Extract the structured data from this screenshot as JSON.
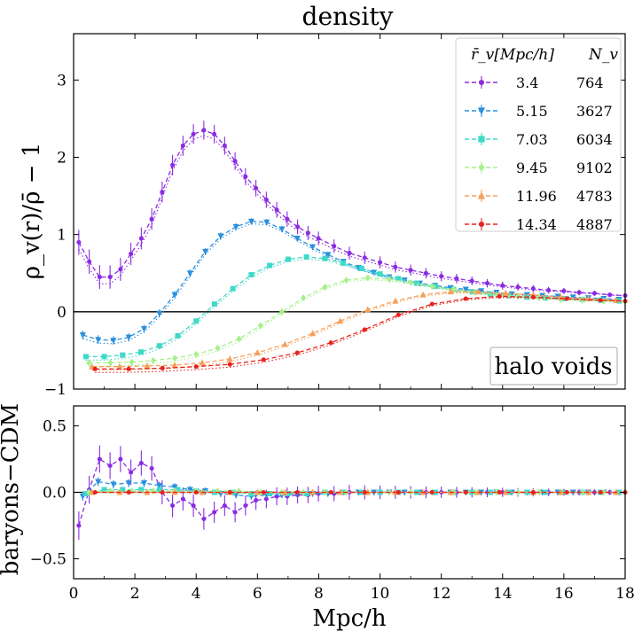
{
  "chart_data": [
    {
      "type": "line",
      "title": "density",
      "ylabel": "ρ_v(r)/ρ̄ − 1",
      "xlabel": "",
      "xlim": [
        0,
        18
      ],
      "ylim": [
        -1,
        3.6
      ],
      "xticks": [
        "0",
        "2",
        "4",
        "6",
        "8",
        "10",
        "12",
        "14",
        "16",
        "18"
      ],
      "yticks": [
        "−1",
        "0",
        "1",
        "2",
        "3"
      ],
      "ytick_values": [
        -1,
        0,
        1,
        2,
        3
      ],
      "annotation": "halo voids",
      "legend": {
        "location": "upper-right",
        "header_radius": "r̄_v[Mpc/h]",
        "header_count": "N_v"
      },
      "series": [
        {
          "name": "3.4",
          "count": "764",
          "color": "#8b2be2",
          "marker": "circle",
          "x": [
            0.17,
            0.51,
            0.85,
            1.19,
            1.53,
            1.87,
            2.21,
            2.55,
            2.89,
            3.23,
            3.57,
            3.91,
            4.25,
            4.59,
            4.93,
            5.27,
            5.61,
            5.95,
            6.29,
            6.63,
            6.97,
            7.31,
            7.65,
            7.99,
            8.5,
            9.0,
            9.5,
            10.0,
            10.5,
            11.0,
            11.5,
            12.0,
            12.5,
            13.0,
            13.5,
            14.0,
            14.5,
            15.0,
            15.5,
            16.0,
            16.5,
            17.0,
            17.5,
            18.0
          ],
          "values": [
            0.9,
            0.65,
            0.45,
            0.45,
            0.55,
            0.75,
            0.95,
            1.2,
            1.55,
            1.9,
            2.15,
            2.3,
            2.35,
            2.3,
            2.15,
            1.95,
            1.75,
            1.6,
            1.45,
            1.32,
            1.2,
            1.1,
            1.02,
            0.95,
            0.85,
            0.76,
            0.7,
            0.64,
            0.58,
            0.54,
            0.5,
            0.46,
            0.43,
            0.4,
            0.37,
            0.34,
            0.32,
            0.3,
            0.28,
            0.27,
            0.25,
            0.24,
            0.22,
            0.21
          ]
        },
        {
          "name": "5.15",
          "count": "3627",
          "color": "#2a8fdd",
          "marker": "triangle-down",
          "x": [
            0.3,
            0.8,
            1.3,
            1.8,
            2.3,
            2.8,
            3.3,
            3.8,
            4.3,
            4.8,
            5.3,
            5.8,
            6.3,
            6.8,
            7.3,
            7.8,
            8.3,
            8.8,
            9.3,
            9.8,
            10.3,
            10.8,
            11.3,
            11.8,
            12.3,
            12.8,
            13.3,
            13.8,
            14.3,
            14.8,
            15.3,
            15.8,
            16.3,
            16.8,
            17.3,
            17.8
          ],
          "values": [
            -0.3,
            -0.36,
            -0.37,
            -0.33,
            -0.22,
            -0.02,
            0.22,
            0.5,
            0.78,
            0.98,
            1.1,
            1.17,
            1.16,
            1.07,
            0.95,
            0.84,
            0.74,
            0.65,
            0.57,
            0.51,
            0.45,
            0.41,
            0.37,
            0.34,
            0.31,
            0.29,
            0.27,
            0.25,
            0.23,
            0.22,
            0.21,
            0.2,
            0.19,
            0.18,
            0.17,
            0.16
          ]
        },
        {
          "name": "7.03",
          "count": "6034",
          "color": "#3fd9c8",
          "marker": "square",
          "x": [
            0.4,
            1.0,
            1.6,
            2.2,
            2.8,
            3.4,
            4.0,
            4.6,
            5.2,
            5.8,
            6.4,
            7.0,
            7.6,
            8.2,
            8.8,
            9.4,
            10.0,
            10.6,
            11.2,
            11.8,
            12.4,
            13.0,
            13.6,
            14.2,
            14.8,
            15.4,
            16.0,
            16.6,
            17.2,
            17.8
          ],
          "values": [
            -0.58,
            -0.58,
            -0.56,
            -0.52,
            -0.44,
            -0.31,
            -0.12,
            0.1,
            0.3,
            0.48,
            0.6,
            0.68,
            0.71,
            0.69,
            0.63,
            0.56,
            0.49,
            0.43,
            0.37,
            0.33,
            0.29,
            0.26,
            0.23,
            0.21,
            0.19,
            0.18,
            0.17,
            0.16,
            0.15,
            0.14
          ]
        },
        {
          "name": "9.45",
          "count": "9102",
          "color": "#a7f08c",
          "marker": "diamond",
          "x": [
            0.5,
            1.2,
            1.9,
            2.6,
            3.3,
            4.0,
            4.7,
            5.4,
            6.1,
            6.8,
            7.5,
            8.2,
            8.9,
            9.6,
            10.3,
            11.0,
            11.7,
            12.4,
            13.1,
            13.8,
            14.5,
            15.2,
            15.9,
            16.6,
            17.3,
            18.0
          ],
          "values": [
            -0.66,
            -0.66,
            -0.65,
            -0.63,
            -0.6,
            -0.55,
            -0.47,
            -0.35,
            -0.18,
            0.0,
            0.18,
            0.32,
            0.41,
            0.44,
            0.42,
            0.38,
            0.33,
            0.29,
            0.25,
            0.22,
            0.2,
            0.18,
            0.16,
            0.15,
            0.14,
            0.13
          ]
        },
        {
          "name": "11.96",
          "count": "4783",
          "color": "#f5a05a",
          "marker": "triangle-up",
          "x": [
            0.6,
            1.5,
            2.4,
            3.3,
            4.2,
            5.1,
            6.0,
            6.9,
            7.8,
            8.7,
            9.6,
            10.5,
            11.4,
            12.3,
            13.2,
            14.1,
            15.0,
            15.9,
            16.8,
            17.7
          ],
          "values": [
            -0.71,
            -0.71,
            -0.7,
            -0.69,
            -0.66,
            -0.61,
            -0.53,
            -0.42,
            -0.28,
            -0.12,
            0.03,
            0.14,
            0.22,
            0.26,
            0.26,
            0.24,
            0.22,
            0.19,
            0.17,
            0.15
          ]
        },
        {
          "name": "14.34",
          "count": "4887",
          "color": "#e8231c",
          "marker": "circle",
          "x": [
            0.7,
            1.8,
            2.9,
            4.0,
            5.1,
            6.2,
            7.3,
            8.4,
            9.5,
            10.6,
            11.7,
            12.8,
            13.9,
            15.0,
            16.1,
            17.2,
            18.0
          ],
          "values": [
            -0.74,
            -0.74,
            -0.73,
            -0.71,
            -0.68,
            -0.62,
            -0.53,
            -0.4,
            -0.23,
            -0.04,
            0.1,
            0.17,
            0.2,
            0.19,
            0.17,
            0.15,
            0.14
          ]
        }
      ]
    },
    {
      "type": "line",
      "title": "",
      "ylabel": "baryons−CDM",
      "xlabel": "Mpc/h",
      "xlim": [
        0,
        18
      ],
      "ylim": [
        -0.65,
        0.65
      ],
      "xticks": [
        "0",
        "2",
        "4",
        "6",
        "8",
        "10",
        "12",
        "14",
        "16",
        "18"
      ],
      "xtick_values": [
        0,
        2,
        4,
        6,
        8,
        10,
        12,
        14,
        16,
        18
      ],
      "yticks": [
        "−0.5",
        "0.0",
        "0.5"
      ],
      "ytick_values": [
        -0.5,
        0.0,
        0.5
      ],
      "series": [
        {
          "name": "3.4",
          "color": "#8b2be2",
          "marker": "circle",
          "x": [
            0.17,
            0.51,
            0.85,
            1.19,
            1.53,
            1.87,
            2.21,
            2.55,
            2.89,
            3.23,
            3.57,
            3.91,
            4.25,
            4.59,
            4.93,
            5.27,
            5.61,
            5.95,
            6.29,
            6.63,
            6.97,
            7.31,
            7.65,
            7.99,
            8.5,
            9.0,
            9.5,
            10.0,
            10.5,
            11.0,
            11.5,
            12.0,
            12.5,
            13.0,
            13.5,
            14.0,
            14.5,
            15.0,
            15.5,
            16.0,
            16.5,
            17.0,
            17.5,
            18.0
          ],
          "values": [
            -0.25,
            0.02,
            0.25,
            0.2,
            0.25,
            0.15,
            0.22,
            0.18,
            0.0,
            -0.1,
            -0.05,
            -0.1,
            -0.2,
            -0.15,
            -0.1,
            -0.15,
            -0.1,
            -0.06,
            -0.05,
            -0.03,
            -0.03,
            -0.02,
            -0.02,
            -0.01,
            -0.01,
            0.0,
            0.0,
            0.0,
            0.0,
            0.0,
            0.0,
            0.0,
            0.0,
            0.0,
            0.0,
            0.0,
            0.0,
            0.0,
            0.0,
            0.0,
            0.0,
            0.0,
            0.0,
            0.0
          ]
        },
        {
          "name": "5.15",
          "color": "#2a8fdd",
          "marker": "triangle-down",
          "x": [
            0.3,
            0.8,
            1.3,
            1.8,
            2.3,
            2.8,
            3.3,
            3.8,
            4.3,
            4.8,
            5.3,
            5.8,
            6.3,
            6.8,
            7.3,
            7.8,
            8.3,
            8.8,
            9.3,
            9.8,
            10.3,
            10.8,
            11.3,
            11.8,
            12.3,
            12.8,
            13.3,
            13.8,
            14.3,
            14.8,
            15.3,
            15.8,
            16.3,
            16.8,
            17.3,
            17.8
          ],
          "values": [
            -0.03,
            0.08,
            0.06,
            0.07,
            0.07,
            0.05,
            0.04,
            0.02,
            0.01,
            -0.01,
            -0.02,
            -0.03,
            -0.02,
            -0.02,
            -0.01,
            -0.01,
            -0.01,
            0.0,
            0.0,
            0.0,
            0.0,
            0.0,
            0.0,
            0.0,
            0.0,
            0.0,
            0.0,
            0.0,
            0.0,
            0.0,
            0.0,
            0.0,
            0.0,
            0.0,
            0.0,
            0.0
          ]
        },
        {
          "name": "7.03",
          "color": "#3fd9c8",
          "marker": "square",
          "x": [
            0.4,
            1.0,
            1.6,
            2.2,
            2.8,
            3.4,
            4.0,
            4.6,
            5.2,
            5.8,
            6.4,
            7.0,
            7.6,
            8.2,
            8.8,
            9.4,
            10.0,
            10.6,
            11.2,
            11.8,
            12.4,
            13.0,
            13.6,
            14.2,
            14.8,
            15.4,
            16.0,
            16.6,
            17.2,
            17.8
          ],
          "values": [
            -0.01,
            0.02,
            0.02,
            0.02,
            0.02,
            0.02,
            0.01,
            0.0,
            0.0,
            -0.01,
            -0.01,
            -0.01,
            -0.01,
            0.0,
            0.0,
            0.0,
            0.0,
            0.0,
            0.0,
            0.0,
            0.0,
            0.0,
            0.0,
            0.0,
            0.0,
            0.0,
            0.0,
            0.0,
            0.0,
            0.0
          ]
        },
        {
          "name": "9.45",
          "color": "#a7f08c",
          "marker": "diamond",
          "x": [
            0.5,
            1.2,
            1.9,
            2.6,
            3.3,
            4.0,
            4.7,
            5.4,
            6.1,
            6.8,
            7.5,
            8.2,
            8.9,
            9.6,
            10.3,
            11.0,
            11.7,
            12.4,
            13.1,
            13.8,
            14.5,
            15.2,
            15.9,
            16.6,
            17.3,
            18.0
          ],
          "values": [
            0.0,
            0.01,
            0.01,
            0.01,
            0.01,
            0.01,
            0.01,
            0.01,
            0.0,
            0.0,
            0.0,
            0.0,
            0.0,
            0.0,
            0.0,
            0.0,
            0.0,
            0.0,
            0.0,
            0.0,
            0.0,
            0.0,
            0.0,
            0.0,
            0.0,
            0.0
          ]
        },
        {
          "name": "11.96",
          "color": "#f5a05a",
          "marker": "triangle-up",
          "x": [
            0.6,
            1.5,
            2.4,
            3.3,
            4.2,
            5.1,
            6.0,
            6.9,
            7.8,
            8.7,
            9.6,
            10.5,
            11.4,
            12.3,
            13.2,
            14.1,
            15.0,
            15.9,
            16.8,
            17.7
          ],
          "values": [
            0.0,
            0.0,
            0.0,
            0.0,
            0.0,
            0.0,
            0.0,
            0.0,
            0.0,
            0.0,
            0.0,
            0.0,
            0.0,
            0.0,
            0.0,
            0.0,
            0.0,
            0.0,
            0.0,
            0.0
          ]
        },
        {
          "name": "14.34",
          "color": "#e8231c",
          "marker": "circle",
          "x": [
            0.7,
            1.8,
            2.9,
            4.0,
            5.1,
            6.2,
            7.3,
            8.4,
            9.5,
            10.6,
            11.7,
            12.8,
            13.9,
            15.0,
            16.1,
            17.2,
            18.0
          ],
          "values": [
            0.0,
            0.0,
            0.0,
            0.0,
            0.0,
            0.0,
            0.0,
            0.0,
            0.0,
            0.0,
            0.0,
            0.0,
            0.0,
            0.0,
            0.0,
            0.0,
            0.0
          ]
        }
      ]
    }
  ]
}
